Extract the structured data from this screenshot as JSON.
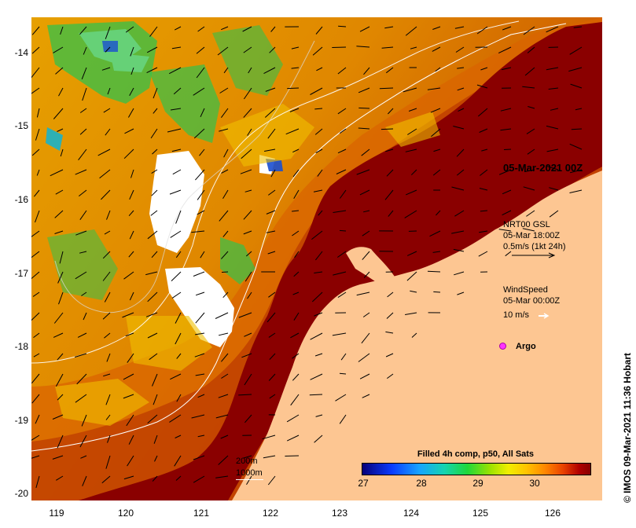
{
  "map": {
    "title": "05-Mar-2021 00Z",
    "x_ticks": [
      "119",
      "120",
      "121",
      "122",
      "123",
      "124",
      "125",
      "126"
    ],
    "y_ticks": [
      "-14",
      "-15",
      "-16",
      "-17",
      "-18",
      "-19",
      "-20"
    ],
    "legend": {
      "currents_line1": "NRT00 GSL",
      "currents_line2": "05-Mar 18:00Z",
      "currents_line3": "0.5m/s (1kt 24h)",
      "wind_line1": "WindSpeed",
      "wind_line2": "05-Mar 00:00Z",
      "wind_line3": "10 m/s",
      "argo_label": "Argo"
    },
    "contours": {
      "shallow": "200m",
      "deep": "1000m"
    },
    "colorbar": {
      "title": "Filled 4h comp, p50, All Sats",
      "ticks": [
        "27",
        "28",
        "29",
        "30"
      ],
      "range": [
        27,
        30.8
      ]
    },
    "credit": "© IMOS 09-Mar-2021 11:36 Hobart",
    "colors": {
      "land": "#fdc692",
      "warm": "#8a0000",
      "orange": "#e07a00",
      "yellow": "#f0b000",
      "green": "#33c24a",
      "cyan": "#1ab3c8",
      "cloud": "#ffffff"
    }
  }
}
